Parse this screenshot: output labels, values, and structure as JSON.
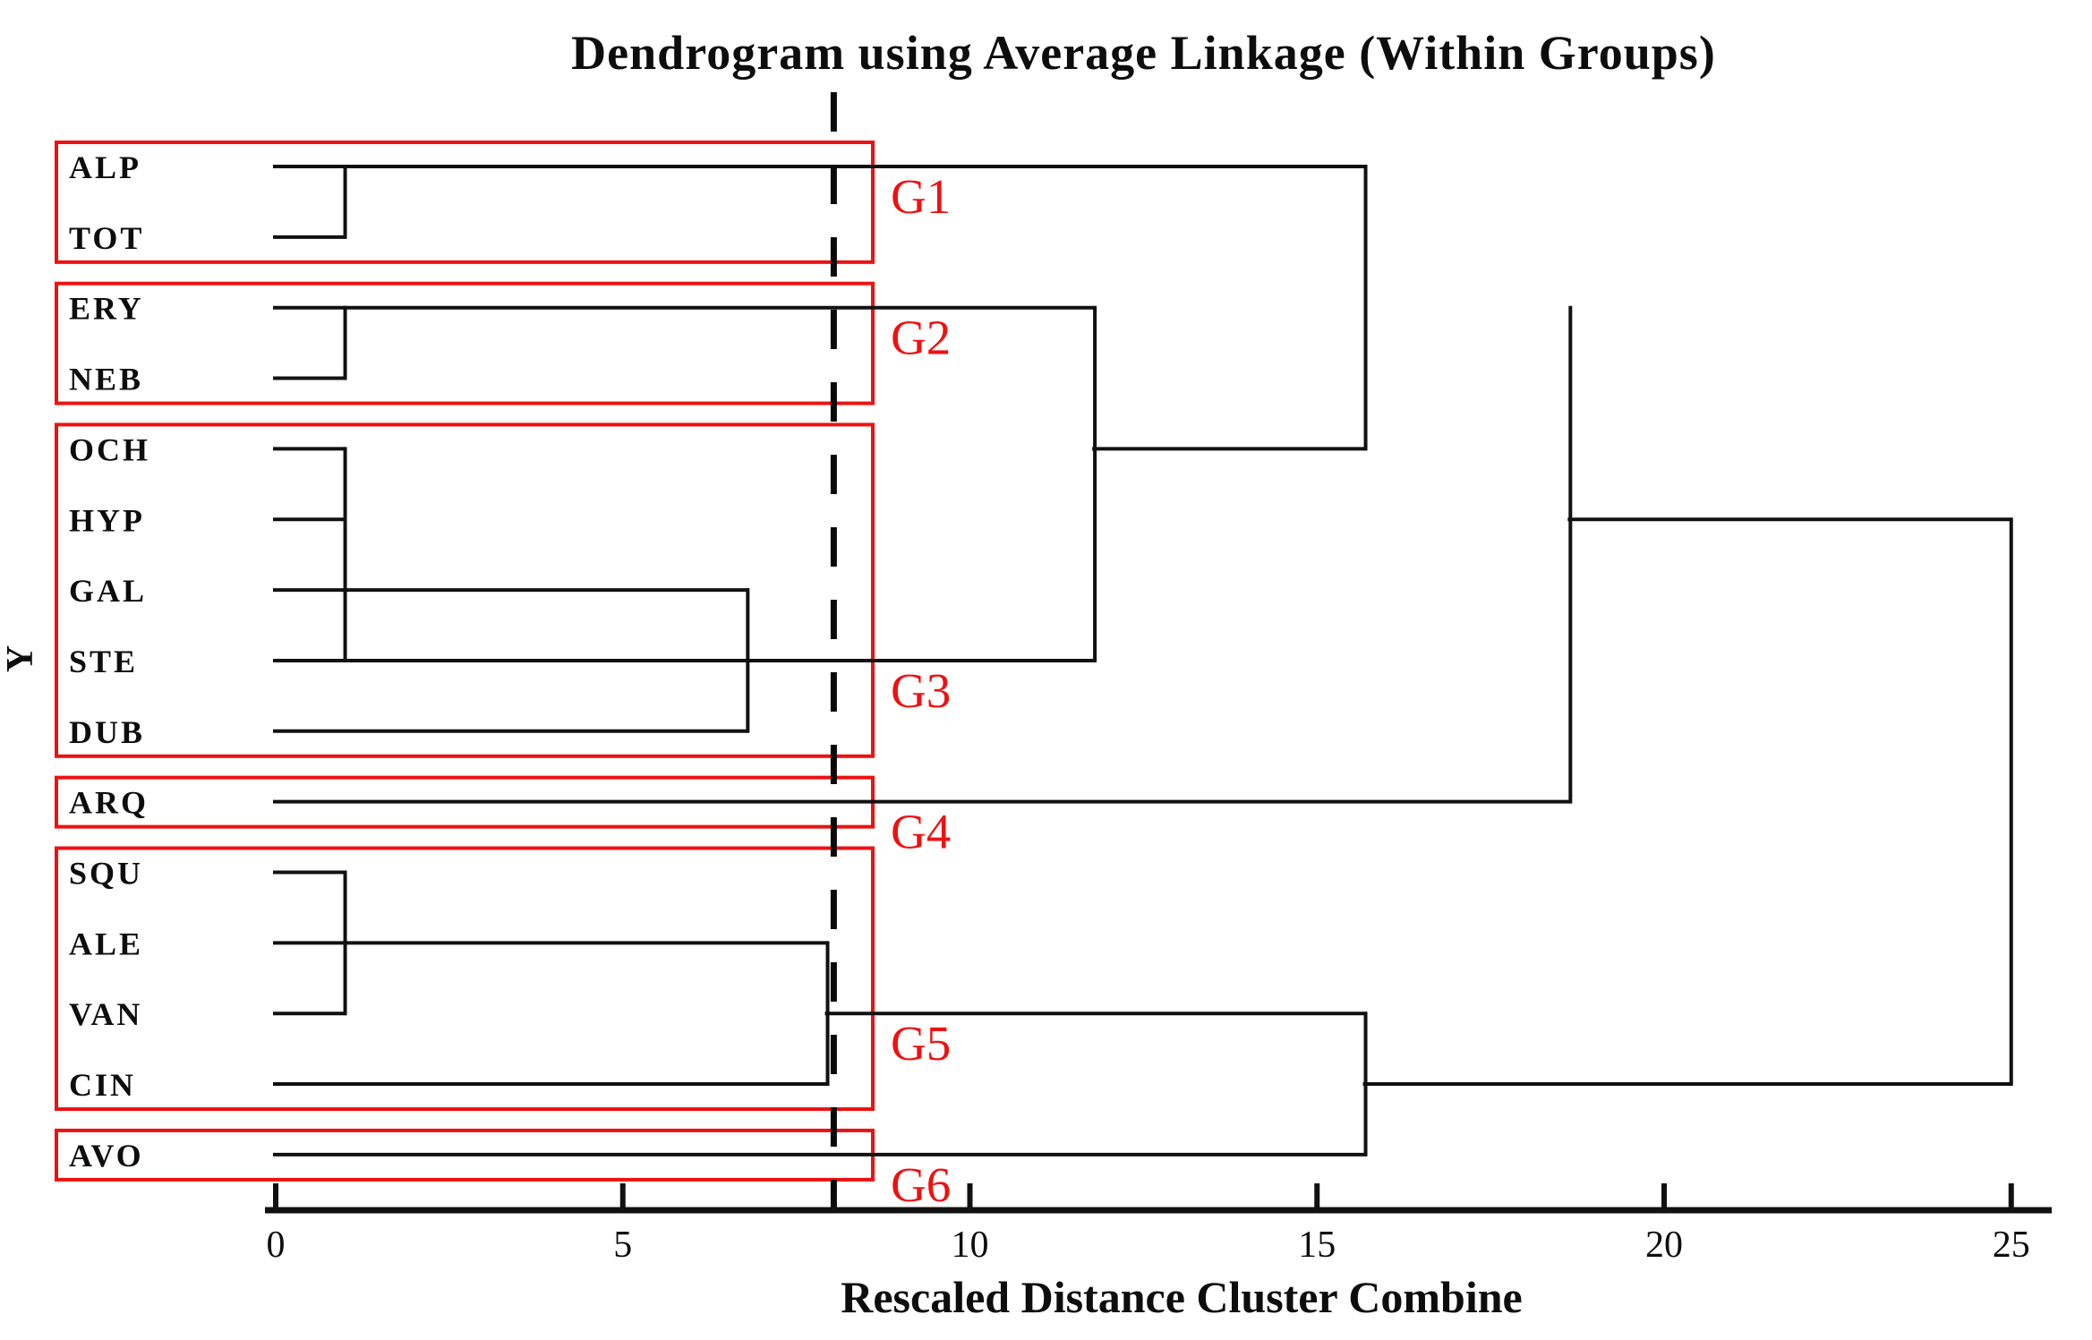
{
  "chart_data": {
    "type": "dendrogram",
    "title": "Dendrogram using Average Linkage (Within Groups)",
    "xlabel": "Rescaled Distance Cluster Combine",
    "ylabel": "Y",
    "x_axis": {
      "min": 0,
      "max": 25,
      "ticks": [
        0,
        5,
        10,
        15,
        20,
        25
      ]
    },
    "leaves": [
      "ALP",
      "TOT",
      "ERY",
      "NEB",
      "OCH",
      "HYP",
      "GAL",
      "STE",
      "DUB",
      "ARQ",
      "SQU",
      "ALE",
      "VAN",
      "CIN",
      "AVO"
    ],
    "threshold_distance": 8,
    "groups": [
      {
        "label": "G1",
        "members": [
          "ALP",
          "TOT"
        ],
        "row_start": 0,
        "row_end": 1,
        "label_anchor_row": 0
      },
      {
        "label": "G2",
        "members": [
          "ERY",
          "NEB"
        ],
        "row_start": 2,
        "row_end": 3,
        "label_anchor_row": 2
      },
      {
        "label": "G3",
        "members": [
          "OCH",
          "HYP",
          "GAL",
          "STE",
          "DUB"
        ],
        "row_start": 4,
        "row_end": 8,
        "label_anchor_row": 7
      },
      {
        "label": "G4",
        "members": [
          "ARQ"
        ],
        "row_start": 9,
        "row_end": 9,
        "label_anchor_row": 9
      },
      {
        "label": "G5",
        "members": [
          "SQU",
          "ALE",
          "VAN",
          "CIN"
        ],
        "row_start": 10,
        "row_end": 13,
        "label_anchor_row": 12
      },
      {
        "label": "G6",
        "members": [
          "AVO"
        ],
        "row_start": 14,
        "row_end": 14,
        "label_anchor_row": 14
      }
    ],
    "merges": [
      {
        "clusters": [
          "ALP",
          "TOT"
        ],
        "distance": 1
      },
      {
        "clusters": [
          "ERY",
          "NEB"
        ],
        "distance": 1
      },
      {
        "clusters": [
          "OCH",
          "HYP",
          "STE"
        ],
        "distance": 1
      },
      {
        "clusters": [
          "SQU",
          "ALE",
          "VAN"
        ],
        "distance": 1
      },
      {
        "clusters": [
          "OCH+HYP+STE",
          "GAL",
          "DUB"
        ],
        "distance": 6.8
      },
      {
        "clusters": [
          "SQU+ALE+VAN",
          "CIN"
        ],
        "distance": 7.95
      },
      {
        "clusters": [
          "ERY+NEB",
          "OCH+HYP+STE+GAL+DUB"
        ],
        "distance": 11.8
      },
      {
        "clusters": [
          "ALP+TOT",
          "ERY..DUB"
        ],
        "distance": 15.7
      },
      {
        "clusters": [
          "SQU+ALE+VAN+CIN",
          "AVO"
        ],
        "distance": 15.7
      },
      {
        "clusters": [
          "ALP..DUB",
          "ARQ"
        ],
        "distance": 18.65
      },
      {
        "clusters": [
          "ALP..ARQ",
          "SQU..AVO"
        ],
        "distance": 25
      }
    ],
    "h_lines": [
      {
        "row": 0,
        "from": 0,
        "to": 15.7
      },
      {
        "row": 1,
        "from": 0,
        "to": 1
      },
      {
        "row": 2,
        "from": 0,
        "to": 11.8
      },
      {
        "row": 3,
        "from": 0,
        "to": 1
      },
      {
        "row": 4,
        "from": 0,
        "to": 1
      },
      {
        "row": 4,
        "from": 11.8,
        "to": 15.7
      },
      {
        "row": 5,
        "from": 0,
        "to": 1
      },
      {
        "row": 5,
        "from": 18.65,
        "to": 25
      },
      {
        "row": 6,
        "from": 0,
        "to": 6.8
      },
      {
        "row": 7,
        "from": 0,
        "to": 11.8
      },
      {
        "row": 8,
        "from": 0,
        "to": 6.8
      },
      {
        "row": 9,
        "from": 0,
        "to": 18.65
      },
      {
        "row": 10,
        "from": 0,
        "to": 1
      },
      {
        "row": 11,
        "from": 0,
        "to": 7.95
      },
      {
        "row": 12,
        "from": 0,
        "to": 1
      },
      {
        "row": 12,
        "from": 7.95,
        "to": 15.7
      },
      {
        "row": 13,
        "from": 0,
        "to": 7.95
      },
      {
        "row": 13,
        "from": 15.7,
        "to": 25
      },
      {
        "row": 14,
        "from": 0,
        "to": 15.7
      }
    ],
    "v_lines": [
      {
        "at": 1,
        "row_from": 0,
        "row_to": 1
      },
      {
        "at": 1,
        "row_from": 2,
        "row_to": 3
      },
      {
        "at": 1,
        "row_from": 4,
        "row_to": 7
      },
      {
        "at": 6.8,
        "row_from": 6,
        "row_to": 8
      },
      {
        "at": 11.8,
        "row_from": 2,
        "row_to": 7
      },
      {
        "at": 15.7,
        "row_from": 0,
        "row_to": 4
      },
      {
        "at": 18.65,
        "row_from": 2,
        "row_to": 9
      },
      {
        "at": 1,
        "row_from": 10,
        "row_to": 12
      },
      {
        "at": 7.95,
        "row_from": 11,
        "row_to": 13
      },
      {
        "at": 15.7,
        "row_from": 12,
        "row_to": 14
      },
      {
        "at": 25,
        "row_from": 5,
        "row_to": 13
      }
    ],
    "colors": {
      "line": "#111111",
      "accent_red": "#ee1111"
    },
    "legend_position": "none",
    "grid": false
  }
}
